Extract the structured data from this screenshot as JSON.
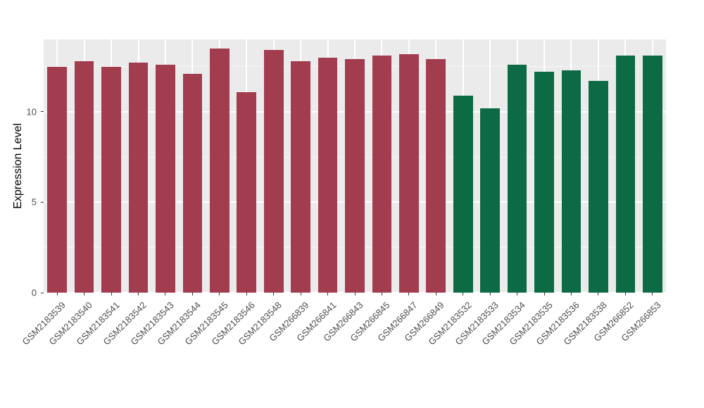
{
  "chart_data": {
    "type": "bar",
    "title": "",
    "xlabel": "",
    "ylabel": "Expression Level",
    "ylim": [
      0,
      14
    ],
    "yticks": [
      0,
      5,
      10
    ],
    "yticks_minor": [
      2.5,
      7.5,
      12.5
    ],
    "grid": true,
    "legend_position": "none",
    "panel_background": "#EBEBEB",
    "grid_color": "#FFFFFF",
    "group_colors": {
      "group1": "#A23C4F",
      "group2": "#0C6B45"
    },
    "categories": [
      "GSM2183539",
      "GSM2183540",
      "GSM2183541",
      "GSM2183542",
      "GSM2183543",
      "GSM2183544",
      "GSM2183545",
      "GSM2183546",
      "GSM2183548",
      "GSM266839",
      "GSM266841",
      "GSM266843",
      "GSM266845",
      "GSM266847",
      "GSM266849",
      "GSM2183532",
      "GSM2183533",
      "GSM2183534",
      "GSM2183535",
      "GSM2183536",
      "GSM2183538",
      "GSM266852",
      "GSM266853"
    ],
    "values": [
      12.5,
      12.8,
      12.5,
      12.7,
      12.6,
      12.1,
      13.5,
      11.1,
      13.4,
      12.8,
      13.0,
      12.9,
      13.1,
      13.2,
      12.9,
      10.9,
      10.2,
      12.6,
      12.2,
      12.3,
      11.7,
      13.1,
      13.1
    ],
    "bar_colors": [
      "#A23C4F",
      "#A23C4F",
      "#A23C4F",
      "#A23C4F",
      "#A23C4F",
      "#A23C4F",
      "#A23C4F",
      "#A23C4F",
      "#A23C4F",
      "#A23C4F",
      "#A23C4F",
      "#A23C4F",
      "#A23C4F",
      "#A23C4F",
      "#A23C4F",
      "#0C6B45",
      "#0C6B45",
      "#0C6B45",
      "#0C6B45",
      "#0C6B45",
      "#0C6B45",
      "#0C6B45",
      "#0C6B45"
    ]
  }
}
